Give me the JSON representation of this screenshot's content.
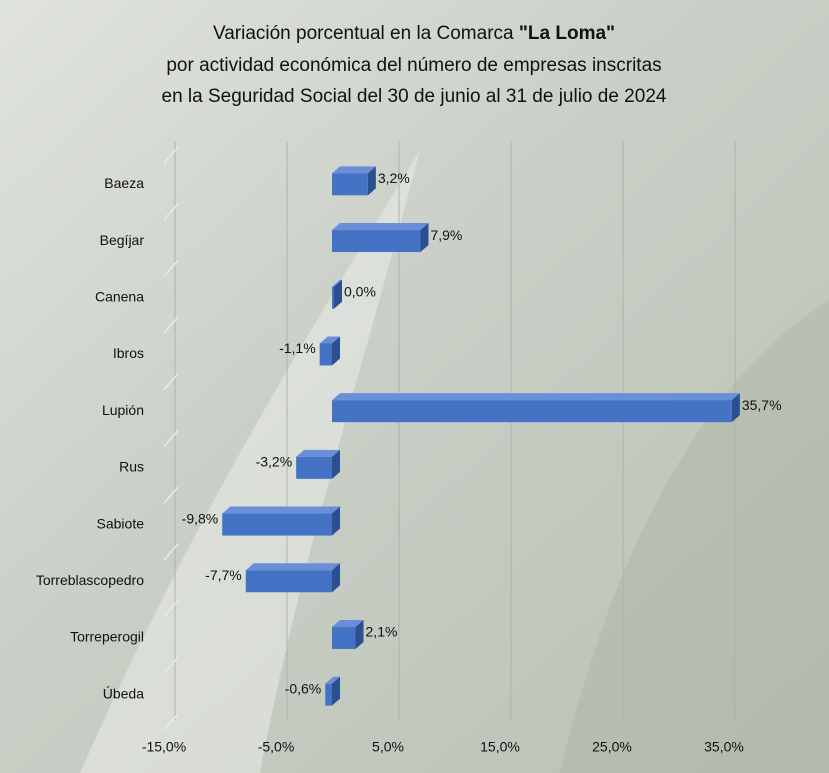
{
  "chart_data": {
    "type": "hbar3d",
    "title": [
      "Variación porcentual en la Comarca",
      "\"La Loma\"",
      "por actividad económica del número de empresas inscritas",
      "en la Seguridad Social del 30 de junio al 31 de julio de 2024"
    ],
    "categories": [
      "Baeza",
      "Begíjar",
      "Canena",
      "Ibros",
      "Lupión",
      "Rus",
      "Sabiote",
      "Torreblascopedro",
      "Torreperogil",
      "Úbeda"
    ],
    "values": [
      3.2,
      7.9,
      0.0,
      -1.1,
      35.7,
      -3.2,
      -9.8,
      -7.7,
      2.1,
      -0.6
    ],
    "value_labels": [
      "3,2%",
      "7,9%",
      "0,0%",
      "-1,1%",
      "35,7%",
      "-3,2%",
      "-9,8%",
      "-7,7%",
      "2,1%",
      "-0,6%"
    ],
    "color": "#4472c4",
    "xlim": [
      -15,
      40
    ],
    "xticks": [
      {
        "value": -15,
        "label": "-15,0%"
      },
      {
        "value": -5,
        "label": "-5,0%"
      },
      {
        "value": 5,
        "label": "5,0%"
      },
      {
        "value": 15,
        "label": "15,0%"
      },
      {
        "value": 25,
        "label": "25,0%"
      },
      {
        "value": 35,
        "label": "35,0%"
      }
    ],
    "grid": true
  }
}
